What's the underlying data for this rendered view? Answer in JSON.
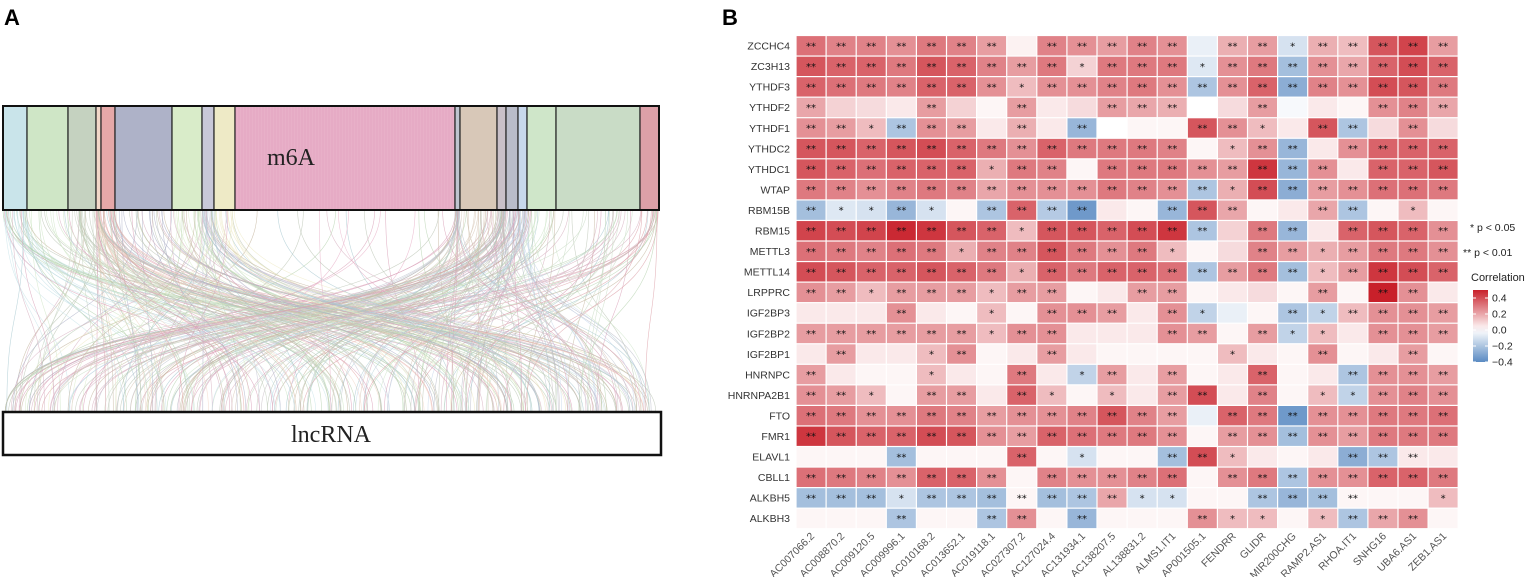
{
  "panel_a": {
    "label": "A",
    "top_box": "m6A",
    "bottom_box": "lncRNA",
    "segment_colors": [
      "#c9e4ea",
      "#cfe6c6",
      "#c5d2c0",
      "#f2d7c8",
      "#e6a8a8",
      "#aeb2c8",
      "#d9ecc9",
      "#c8c8d8",
      "#eeeac6",
      "#e8b0c8",
      "#bfc4cf",
      "#d8c8b8",
      "#c9c0c8",
      "#b9bcc9",
      "#c8d8ec",
      "#cfe6c9",
      "#c9dcc6",
      "#dca0a8"
    ]
  },
  "panel_b": {
    "label": "B",
    "sig_legend": [
      "* p < 0.05",
      "** p < 0.01"
    ]
  },
  "chart_data": {
    "type": "heatmap",
    "title": "",
    "legend_title": "Correlation",
    "color_scale": {
      "min": -0.4,
      "max": 0.5,
      "low": "#5a8ac2",
      "mid": "#ffffff",
      "high": "#c8202a"
    },
    "legend_ticks": [
      "0.4",
      "0.2",
      "0.0",
      "−0.2",
      "−0.4"
    ],
    "legend_tick_values": [
      0.4,
      0.2,
      0.0,
      -0.2,
      -0.4
    ],
    "rows": [
      "ZCCHC4",
      "ZC3H13",
      "YTHDF3",
      "YTHDF2",
      "YTHDF1",
      "YTHDC2",
      "YTHDC1",
      "WTAP",
      "RBM15B",
      "RBM15",
      "METTL3",
      "METTL14",
      "LRPPRC",
      "IGF2BP3",
      "IGF2BP2",
      "IGF2BP1",
      "HNRNPC",
      "HNRNPA2B1",
      "FTO",
      "FMR1",
      "ELAVL1",
      "CBLL1",
      "ALKBH5",
      "ALKBH3"
    ],
    "columns": [
      "AC007066.2",
      "AC008870.2",
      "AC009120.5",
      "AC009996.1",
      "AC010168.2",
      "AC013652.1",
      "AC019118.1",
      "AC027307.2",
      "AC127024.4",
      "AC131934.1",
      "AC138207.5",
      "AL138831.2",
      "ALMS1.IT1",
      "AP001505.1",
      "FENDRR",
      "GLIDR",
      "MIR200CHG",
      "RAMP2.AS1",
      "RHOA.IT1",
      "SNHG16",
      "UBA6.AS1",
      "ZEB1.AS1"
    ],
    "values": [
      [
        0.32,
        0.28,
        0.28,
        0.25,
        0.3,
        0.28,
        0.22,
        0.03,
        0.28,
        0.25,
        0.22,
        0.28,
        0.25,
        -0.05,
        0.18,
        0.22,
        -0.1,
        0.18,
        0.15,
        0.38,
        0.42,
        0.22
      ],
      [
        0.38,
        0.35,
        0.35,
        0.3,
        0.38,
        0.35,
        0.28,
        0.22,
        0.3,
        0.1,
        0.3,
        0.3,
        0.3,
        -0.08,
        0.25,
        0.3,
        -0.22,
        0.25,
        0.2,
        0.35,
        0.4,
        0.35
      ],
      [
        0.35,
        0.32,
        0.3,
        0.28,
        0.35,
        0.35,
        0.25,
        0.15,
        0.25,
        0.25,
        0.28,
        0.3,
        0.25,
        -0.2,
        0.25,
        0.35,
        -0.28,
        0.28,
        0.25,
        0.4,
        0.38,
        0.3
      ],
      [
        0.2,
        0.1,
        0.08,
        0.05,
        0.22,
        0.1,
        0.02,
        0.22,
        0.05,
        0.08,
        0.22,
        0.2,
        0.18,
        0.0,
        0.08,
        0.22,
        -0.02,
        0.05,
        0.02,
        0.25,
        0.28,
        0.2
      ],
      [
        0.25,
        0.22,
        0.15,
        -0.2,
        0.25,
        0.22,
        0.05,
        0.18,
        0.05,
        -0.25,
        0.0,
        0.02,
        0.02,
        0.38,
        0.25,
        0.15,
        0.05,
        0.38,
        -0.2,
        0.08,
        0.25,
        0.08
      ],
      [
        0.38,
        0.38,
        0.35,
        0.38,
        0.4,
        0.35,
        0.3,
        0.25,
        0.35,
        0.3,
        0.3,
        0.3,
        0.28,
        0.02,
        0.15,
        0.25,
        -0.25,
        0.05,
        0.25,
        0.35,
        0.35,
        0.35
      ],
      [
        0.38,
        0.35,
        0.32,
        0.35,
        0.35,
        0.35,
        0.18,
        0.3,
        0.28,
        0.02,
        0.3,
        0.3,
        0.3,
        0.25,
        0.22,
        0.45,
        -0.25,
        0.25,
        0.05,
        0.35,
        0.35,
        0.38
      ],
      [
        0.3,
        0.28,
        0.25,
        0.28,
        0.3,
        0.28,
        0.2,
        0.25,
        0.25,
        0.25,
        0.3,
        0.28,
        0.25,
        -0.2,
        0.18,
        0.4,
        -0.28,
        0.22,
        0.25,
        0.32,
        0.32,
        0.3
      ],
      [
        -0.22,
        -0.08,
        -0.1,
        -0.25,
        -0.1,
        0.02,
        -0.2,
        0.35,
        -0.18,
        -0.35,
        0.05,
        0.02,
        -0.25,
        0.38,
        0.2,
        0.02,
        0.05,
        0.2,
        -0.2,
        0.02,
        0.15,
        0.02
      ],
      [
        0.42,
        0.4,
        0.42,
        0.48,
        0.45,
        0.38,
        0.35,
        0.15,
        0.38,
        0.38,
        0.35,
        0.4,
        0.45,
        -0.2,
        0.1,
        0.3,
        -0.25,
        0.05,
        0.35,
        0.38,
        0.35,
        0.25
      ],
      [
        0.32,
        0.3,
        0.28,
        0.32,
        0.3,
        0.18,
        0.28,
        0.28,
        0.38,
        0.3,
        0.25,
        0.3,
        0.15,
        0.02,
        0.08,
        0.28,
        0.22,
        0.18,
        0.22,
        0.3,
        0.3,
        0.25
      ],
      [
        0.4,
        0.38,
        0.35,
        0.35,
        0.38,
        0.35,
        0.3,
        0.18,
        0.35,
        0.3,
        0.35,
        0.35,
        0.32,
        -0.2,
        0.22,
        0.3,
        -0.22,
        0.15,
        0.22,
        0.45,
        0.4,
        0.35
      ],
      [
        0.25,
        0.22,
        0.15,
        0.22,
        0.22,
        0.22,
        0.15,
        0.22,
        0.22,
        0.02,
        0.05,
        0.22,
        0.22,
        0.02,
        0.05,
        0.08,
        0.02,
        0.22,
        0.02,
        0.5,
        0.25,
        0.05
      ],
      [
        0.05,
        0.05,
        0.05,
        0.25,
        0.05,
        0.02,
        0.15,
        0.02,
        0.25,
        0.25,
        0.22,
        0.05,
        0.25,
        -0.15,
        -0.05,
        0.02,
        -0.2,
        -0.15,
        0.15,
        0.25,
        0.25,
        0.22
      ],
      [
        0.22,
        0.22,
        0.22,
        0.22,
        0.22,
        0.22,
        0.15,
        0.25,
        0.25,
        0.05,
        0.05,
        0.05,
        0.25,
        0.22,
        0.02,
        0.22,
        -0.15,
        0.15,
        0.05,
        0.25,
        0.25,
        0.22
      ],
      [
        0.05,
        0.22,
        0.05,
        0.05,
        0.15,
        0.25,
        0.02,
        0.05,
        0.22,
        0.05,
        0.02,
        0.02,
        0.02,
        0.02,
        0.15,
        0.05,
        0.02,
        0.25,
        0.02,
        0.05,
        0.22,
        0.02
      ],
      [
        0.22,
        0.05,
        0.02,
        0.02,
        0.15,
        0.05,
        0.02,
        0.3,
        0.05,
        -0.15,
        0.22,
        0.05,
        0.22,
        0.02,
        0.05,
        0.35,
        0.02,
        0.05,
        -0.2,
        0.25,
        0.25,
        0.22
      ],
      [
        0.25,
        0.22,
        0.15,
        0.02,
        0.22,
        0.22,
        0.05,
        0.35,
        0.15,
        0.02,
        0.15,
        0.05,
        0.22,
        0.4,
        0.05,
        0.28,
        0.02,
        0.15,
        -0.15,
        0.25,
        0.28,
        0.25
      ],
      [
        0.32,
        0.3,
        0.25,
        0.25,
        0.3,
        0.28,
        0.22,
        0.25,
        0.25,
        0.28,
        0.38,
        0.28,
        0.22,
        -0.05,
        0.35,
        0.3,
        -0.35,
        0.25,
        0.25,
        0.3,
        0.3,
        0.32
      ],
      [
        0.45,
        0.38,
        0.35,
        0.35,
        0.4,
        0.38,
        0.25,
        0.22,
        0.35,
        0.32,
        0.3,
        0.3,
        0.25,
        0.02,
        0.22,
        0.25,
        -0.22,
        0.25,
        0.22,
        0.3,
        0.3,
        0.3
      ],
      [
        0.02,
        0.02,
        0.02,
        -0.22,
        0.02,
        0.02,
        0.02,
        0.35,
        0.02,
        -0.1,
        0.02,
        0.02,
        -0.22,
        0.4,
        0.15,
        0.05,
        0.02,
        0.05,
        -0.28,
        -0.2,
        0.05,
        0.05
      ],
      [
        0.32,
        0.3,
        0.28,
        0.25,
        0.35,
        0.35,
        0.25,
        0.02,
        0.28,
        0.25,
        0.25,
        0.28,
        0.32,
        0.02,
        0.25,
        0.3,
        -0.2,
        0.25,
        0.25,
        0.35,
        0.35,
        0.3
      ],
      [
        -0.22,
        -0.22,
        -0.22,
        -0.1,
        -0.2,
        -0.2,
        -0.22,
        0.02,
        -0.22,
        -0.2,
        0.2,
        -0.1,
        -0.1,
        0.02,
        0.02,
        -0.2,
        -0.25,
        -0.22,
        0.02,
        0.02,
        0.02,
        0.15
      ],
      [
        0.02,
        0.02,
        0.02,
        -0.2,
        0.02,
        0.02,
        -0.2,
        0.25,
        0.02,
        -0.25,
        0.02,
        0.02,
        0.02,
        0.25,
        0.15,
        0.15,
        0.02,
        0.15,
        -0.2,
        0.2,
        0.25,
        0.02
      ]
    ],
    "stars": [
      [
        "**",
        "**",
        "**",
        "**",
        "**",
        "**",
        "**",
        "",
        "**",
        "**",
        "**",
        "**",
        "**",
        "",
        "**",
        "**",
        "*",
        "**",
        "**",
        "**",
        "**",
        "**"
      ],
      [
        "**",
        "**",
        "**",
        "**",
        "**",
        "**",
        "**",
        "**",
        "**",
        "*",
        "**",
        "**",
        "**",
        "*",
        "**",
        "**",
        "**",
        "**",
        "**",
        "**",
        "**",
        "**"
      ],
      [
        "**",
        "**",
        "**",
        "**",
        "**",
        "**",
        "**",
        "*",
        "**",
        "**",
        "**",
        "**",
        "**",
        "**",
        "**",
        "**",
        "**",
        "**",
        "**",
        "**",
        "**",
        "**"
      ],
      [
        "**",
        "",
        "",
        "",
        "**",
        "",
        "",
        "**",
        "",
        "",
        "**",
        "**",
        "**",
        "",
        "",
        "**",
        "",
        "",
        "",
        "**",
        "**",
        "**"
      ],
      [
        "**",
        "**",
        "*",
        "**",
        "**",
        "**",
        "",
        "**",
        "",
        "**",
        "",
        "",
        "",
        "**",
        "**",
        "*",
        "",
        "**",
        "**",
        "",
        "**",
        ""
      ],
      [
        "**",
        "**",
        "**",
        "**",
        "**",
        "**",
        "**",
        "**",
        "**",
        "**",
        "**",
        "**",
        "**",
        "",
        "*",
        "**",
        "**",
        "",
        "**",
        "**",
        "**",
        "**"
      ],
      [
        "**",
        "**",
        "**",
        "**",
        "**",
        "**",
        "*",
        "**",
        "**",
        "",
        "**",
        "**",
        "**",
        "**",
        "**",
        "**",
        "**",
        "**",
        "",
        "**",
        "**",
        "**"
      ],
      [
        "**",
        "**",
        "**",
        "**",
        "**",
        "**",
        "**",
        "**",
        "**",
        "**",
        "**",
        "**",
        "**",
        "**",
        "*",
        "**",
        "**",
        "**",
        "**",
        "**",
        "**",
        "**"
      ],
      [
        "**",
        "*",
        "*",
        "**",
        "*",
        "",
        "**",
        "**",
        "**",
        "**",
        "",
        "",
        "**",
        "**",
        "**",
        "",
        "",
        "**",
        "**",
        "",
        "*",
        ""
      ],
      [
        "**",
        "**",
        "**",
        "**",
        "**",
        "**",
        "**",
        "*",
        "**",
        "**",
        "**",
        "**",
        "**",
        "**",
        "",
        "**",
        "**",
        "",
        "**",
        "**",
        "**",
        "**"
      ],
      [
        "**",
        "**",
        "**",
        "**",
        "**",
        "*",
        "**",
        "**",
        "**",
        "**",
        "**",
        "**",
        "*",
        "",
        "",
        "**",
        "**",
        "*",
        "**",
        "**",
        "**",
        "**"
      ],
      [
        "**",
        "**",
        "**",
        "**",
        "**",
        "**",
        "**",
        "*",
        "**",
        "**",
        "**",
        "**",
        "**",
        "**",
        "**",
        "**",
        "**",
        "*",
        "**",
        "**",
        "**",
        "**"
      ],
      [
        "**",
        "**",
        "*",
        "**",
        "**",
        "**",
        "*",
        "**",
        "**",
        "",
        "",
        "**",
        "**",
        "",
        "",
        "",
        "",
        "**",
        "",
        "**",
        "**",
        ""
      ],
      [
        "",
        "",
        "",
        "**",
        "",
        "",
        "*",
        "",
        "**",
        "**",
        "**",
        "",
        "**",
        "*",
        "",
        "",
        "**",
        "*",
        "**",
        "**",
        "**",
        "**"
      ],
      [
        "**",
        "**",
        "**",
        "**",
        "**",
        "**",
        "*",
        "**",
        "**",
        "",
        "",
        "",
        "**",
        "**",
        "",
        "**",
        "*",
        "*",
        "",
        "**",
        "**",
        "**"
      ],
      [
        "",
        "**",
        "",
        "",
        "*",
        "**",
        "",
        "",
        "**",
        "",
        "",
        "",
        "",
        "",
        "*",
        "",
        "",
        "**",
        "",
        "",
        "**",
        ""
      ],
      [
        "**",
        "",
        "",
        "",
        "*",
        "",
        "",
        "**",
        "",
        "*",
        "**",
        "",
        "**",
        "",
        "",
        "**",
        "",
        "",
        "**",
        "**",
        "**",
        "**"
      ],
      [
        "**",
        "**",
        "*",
        "",
        "**",
        "**",
        "",
        "**",
        "*",
        "",
        "*",
        "",
        "**",
        "**",
        "",
        "**",
        "",
        "*",
        "*",
        "**",
        "**",
        "**"
      ],
      [
        "**",
        "**",
        "**",
        "**",
        "**",
        "**",
        "**",
        "**",
        "**",
        "**",
        "**",
        "**",
        "**",
        "",
        "**",
        "**",
        "**",
        "**",
        "**",
        "**",
        "**",
        "**"
      ],
      [
        "**",
        "**",
        "**",
        "**",
        "**",
        "**",
        "**",
        "**",
        "**",
        "**",
        "**",
        "**",
        "**",
        "",
        "**",
        "**",
        "**",
        "**",
        "**",
        "**",
        "**",
        "**"
      ],
      [
        "",
        "",
        "",
        "**",
        "",
        "",
        "",
        "**",
        "",
        "*",
        "",
        "",
        "**",
        "**",
        "*",
        "",
        "",
        "",
        "**",
        "**",
        "**",
        ""
      ],
      [
        "**",
        "**",
        "**",
        "**",
        "**",
        "**",
        "**",
        "",
        "**",
        "**",
        "**",
        "**",
        "**",
        "",
        "**",
        "**",
        "**",
        "**",
        "**",
        "**",
        "**",
        "**"
      ],
      [
        "**",
        "**",
        "**",
        "*",
        "**",
        "**",
        "**",
        "**",
        "**",
        "**",
        "**",
        "*",
        "*",
        "",
        "",
        "**",
        "**",
        "**",
        "**",
        "",
        "",
        "*"
      ],
      [
        "",
        "",
        "",
        "**",
        "",
        "",
        "**",
        "**",
        "",
        "**",
        "",
        "",
        "",
        "**",
        "*",
        "*",
        "",
        "*",
        "**",
        "**",
        "**",
        ""
      ]
    ]
  }
}
